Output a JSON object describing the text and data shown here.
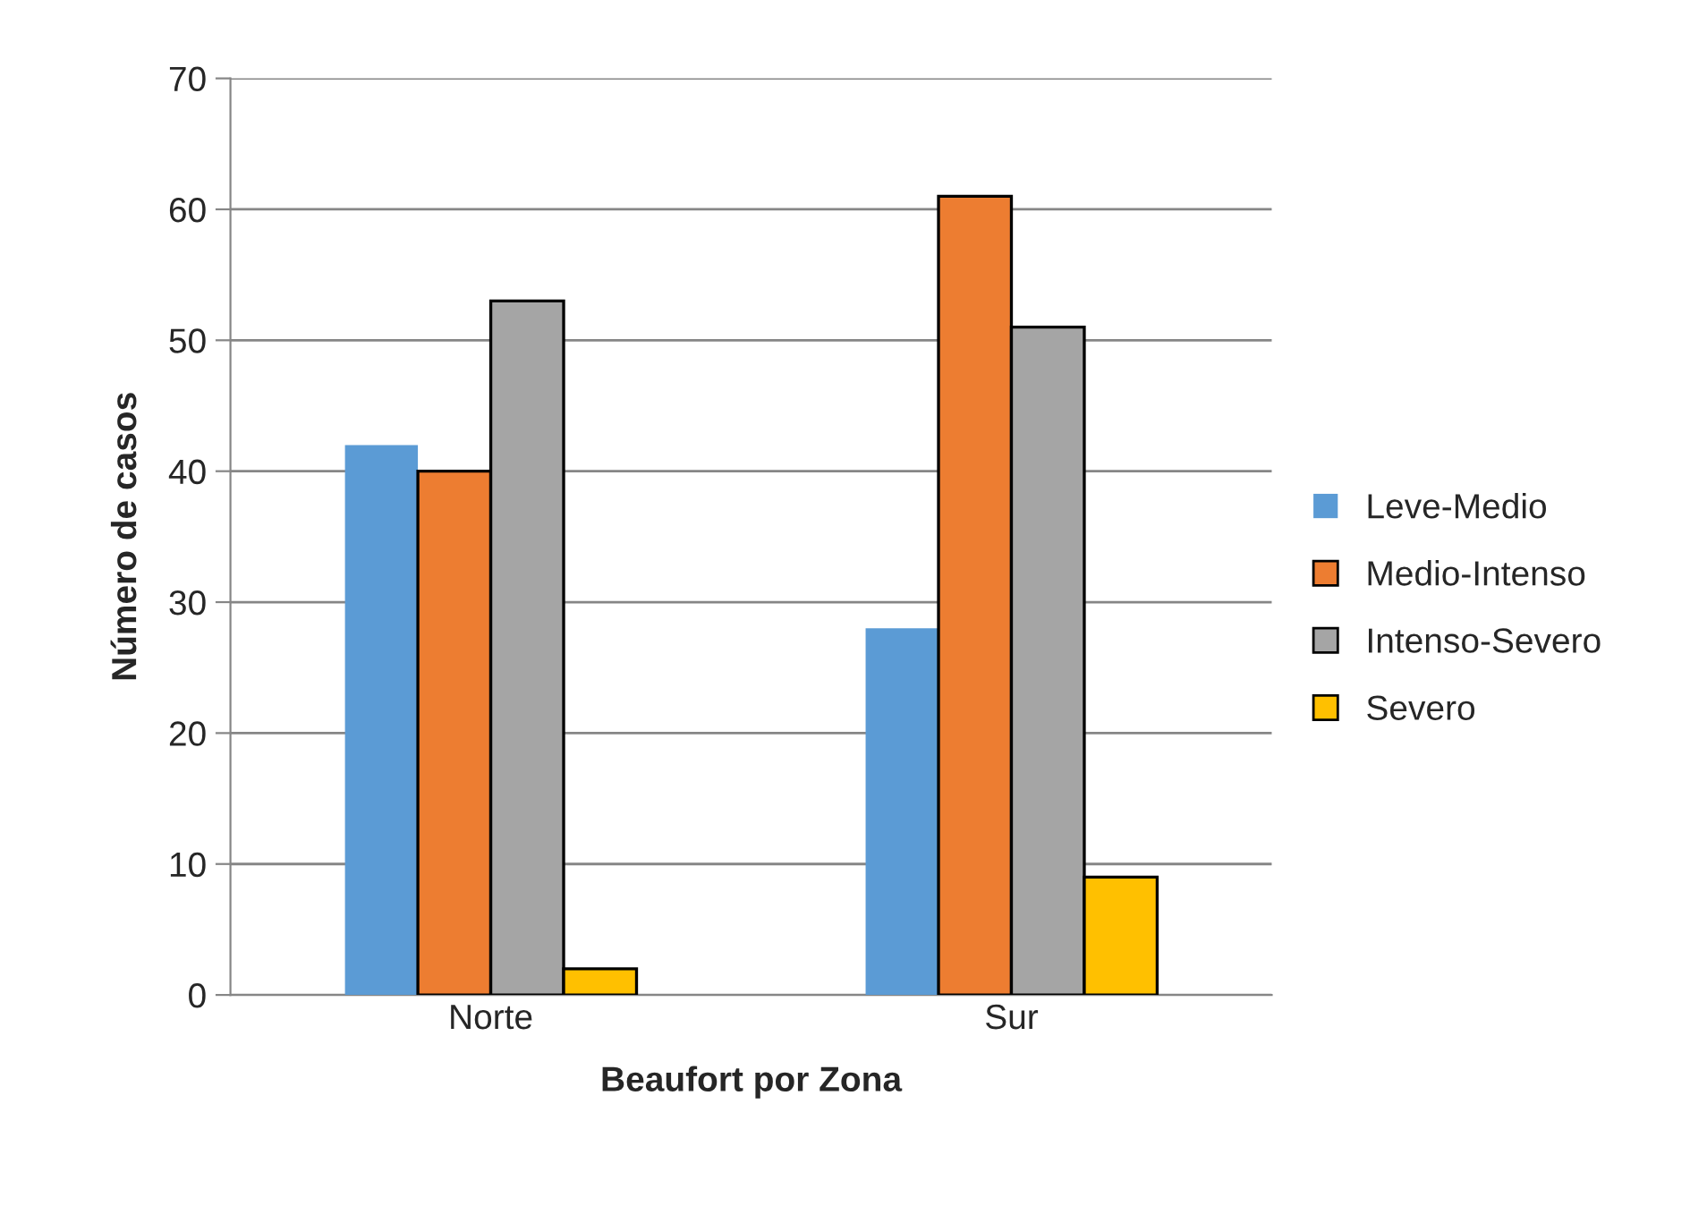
{
  "chart_data": {
    "type": "bar",
    "xlabel": "Beaufort por Zona",
    "ylabel": "Número de casos",
    "categories": [
      "Norte",
      "Sur"
    ],
    "series": [
      {
        "name": "Leve-Medio",
        "color": "#5b9bd5",
        "values": [
          42,
          28
        ]
      },
      {
        "name": "Medio-Intenso",
        "color": "#ed7d31",
        "values": [
          40,
          61
        ]
      },
      {
        "name": "Intenso-Severo",
        "color": "#a5a5a5",
        "values": [
          53,
          51
        ]
      },
      {
        "name": "Severo",
        "color": "#ffc000",
        "values": [
          2,
          9
        ]
      }
    ],
    "ylim": [
      0,
      70
    ],
    "yticks": [
      0,
      10,
      20,
      30,
      40,
      50,
      60,
      70
    ],
    "grid": "y",
    "legend": "right"
  }
}
